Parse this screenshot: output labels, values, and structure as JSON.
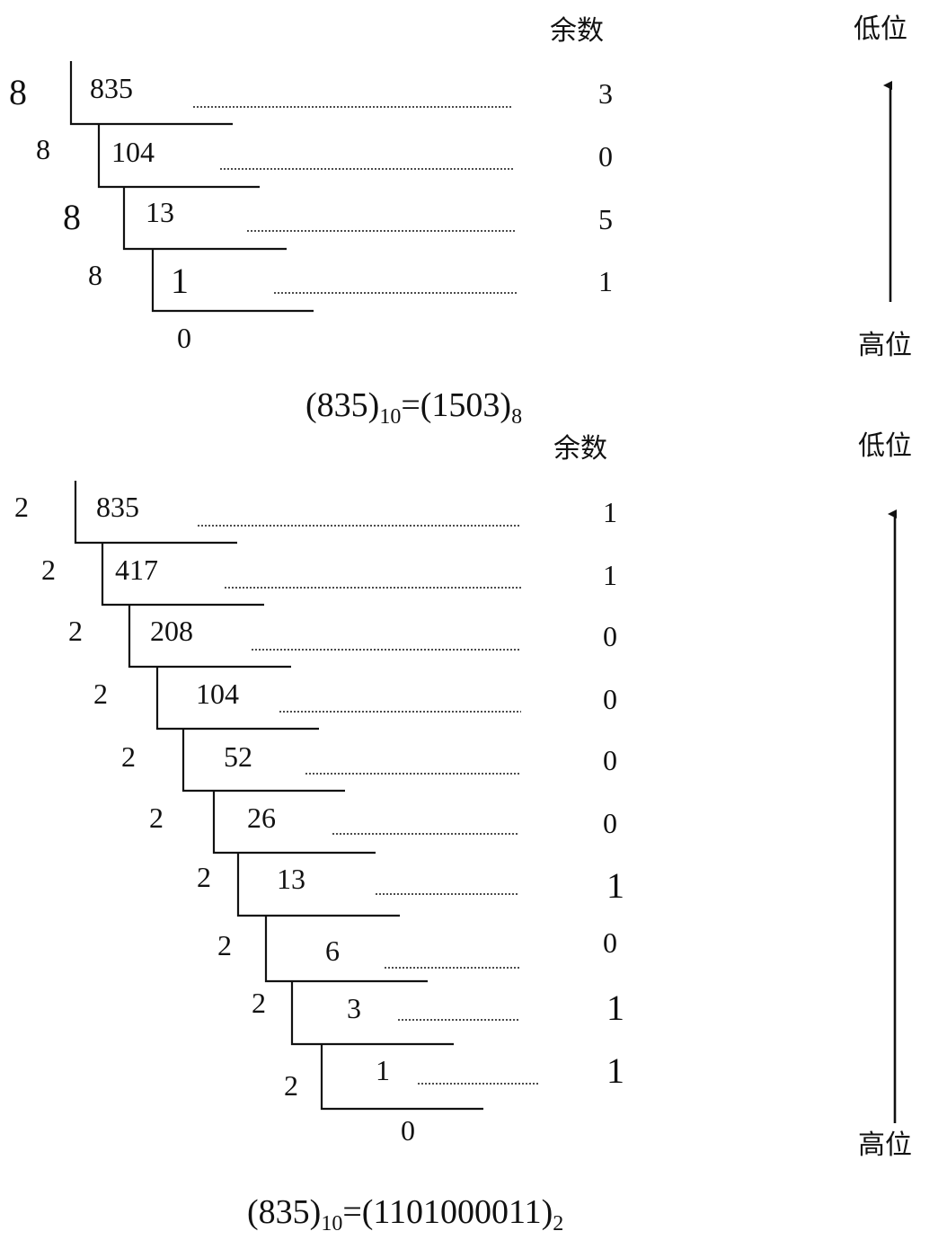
{
  "octal": {
    "remainder_header": "余数",
    "low_label": "低位",
    "high_label": "高位",
    "steps": [
      {
        "divisor": "8",
        "dividend": "835",
        "remainder": "3"
      },
      {
        "divisor": "8",
        "dividend": "104",
        "remainder": "0"
      },
      {
        "divisor": "8",
        "dividend": "13",
        "remainder": "5"
      },
      {
        "divisor": "8",
        "dividend": "1",
        "remainder": "1"
      }
    ],
    "final_quotient": "0",
    "equation": {
      "lhs": "(835)",
      "lhs_base": "10",
      "mid": "=(1503)",
      "rhs_base": "8"
    }
  },
  "binary": {
    "remainder_header": "余数",
    "low_label": "低位",
    "high_label": "高位",
    "steps": [
      {
        "divisor": "2",
        "dividend": "835",
        "remainder": "1"
      },
      {
        "divisor": "2",
        "dividend": "417",
        "remainder": "1"
      },
      {
        "divisor": "2",
        "dividend": "208",
        "remainder": "0"
      },
      {
        "divisor": "2",
        "dividend": "104",
        "remainder": "0"
      },
      {
        "divisor": "2",
        "dividend": "52",
        "remainder": "0"
      },
      {
        "divisor": "2",
        "dividend": "26",
        "remainder": "0"
      },
      {
        "divisor": "2",
        "dividend": "13",
        "remainder": "1"
      },
      {
        "divisor": "2",
        "dividend": "6",
        "remainder": "0"
      },
      {
        "divisor": "2",
        "dividend": "3",
        "remainder": "1"
      },
      {
        "divisor": "2",
        "dividend": "1",
        "remainder": "1"
      }
    ],
    "final_quotient": "0",
    "equation": {
      "lhs": "(835)",
      "lhs_base": "10",
      "mid": "=(1101000011)",
      "rhs_base": "2"
    }
  }
}
